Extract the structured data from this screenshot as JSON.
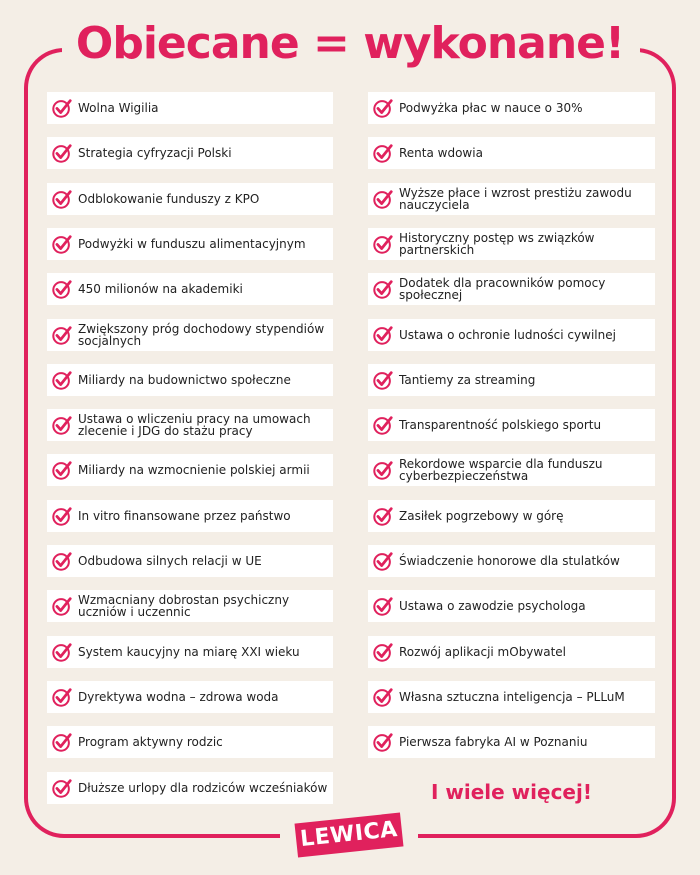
{
  "title": "Obiecane = wykonane!",
  "accent_color": "#e0215d",
  "item_icon": "check-circle-icon",
  "left_items": [
    "Wolna Wigilia",
    "Strategia cyfryzacji Polski",
    "Odblokowanie funduszy z KPO",
    "Podwyżki w funduszu alimentacyjnym",
    "450 milionów na akademiki",
    "Zwiększony próg dochodowy stypendiów socjalnych",
    "Miliardy na budownictwo społeczne",
    "Ustawa o wliczeniu pracy na umowach zlecenie i JDG do stażu pracy",
    "Miliardy na wzmocnienie polskiej armii",
    "In vitro finansowane przez państwo",
    "Odbudowa silnych relacji w UE",
    "Wzmacniany dobrostan psychiczny uczniów i uczennic",
    "System kaucyjny na miarę XXI wieku",
    "Dyrektywa wodna – zdrowa woda",
    "Program aktywny rodzic",
    "Dłuższe urlopy dla rodziców wcześniaków"
  ],
  "right_items": [
    "Podwyżka płac w nauce o 30%",
    "Renta wdowia",
    "Wyższe płace i wzrost prestiżu zawodu nauczyciela",
    "Historyczny postęp ws związków partnerskich",
    "Dodatek dla pracowników pomocy społecznej",
    "Ustawa o ochronie ludności cywilnej",
    "Tantiemy za streaming",
    "Transparentność polskiego sportu",
    "Rekordowe wsparcie dla funduszu cyberbezpieczeństwa",
    "Zasiłek pogrzebowy w górę",
    "Świadczenie honorowe dla stulatków",
    "Ustawa o zawodzie psychologa",
    "Rozwój aplikacji mObywatel",
    "Własna sztuczna inteligencja – PLLuM",
    "Pierwsza fabryka AI w Poznaniu"
  ],
  "more_text": "I wiele więcej!",
  "logo_text": "LEWICA"
}
